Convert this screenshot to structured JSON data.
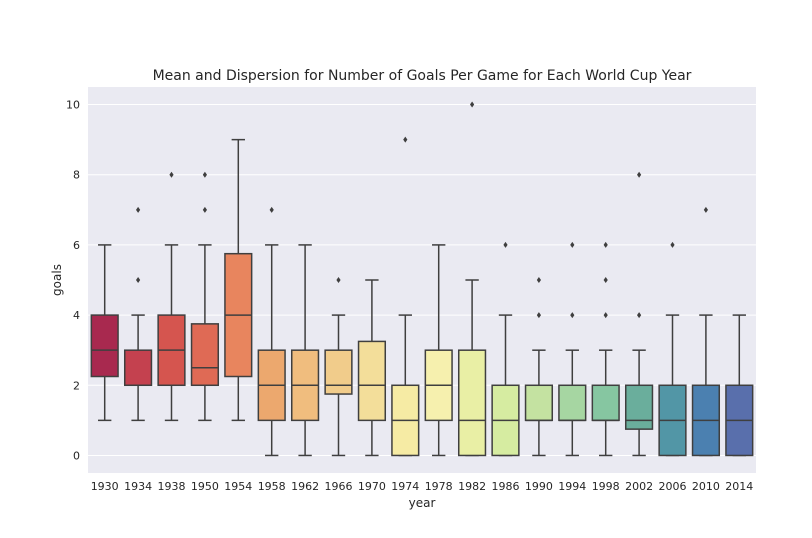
{
  "chart_data": {
    "type": "box",
    "title": "Mean and Dispersion for Number of Goals Per Game for Each World Cup Year",
    "xlabel": "year",
    "ylabel": "goals",
    "ylim": [
      -0.5,
      10.5
    ],
    "yticks": [
      0,
      2,
      4,
      6,
      8,
      10
    ],
    "grid": true,
    "categories": [
      "1930",
      "1934",
      "1938",
      "1950",
      "1954",
      "1958",
      "1962",
      "1966",
      "1970",
      "1974",
      "1978",
      "1982",
      "1986",
      "1990",
      "1994",
      "1998",
      "2002",
      "2006",
      "2010",
      "2014"
    ],
    "colors": [
      "#a8294f",
      "#c4414f",
      "#d5554f",
      "#df6a55",
      "#e8855e",
      "#eca86e",
      "#f0bd7e",
      "#f1cc8b",
      "#f3de9a",
      "#f6eba4",
      "#f6f0ae",
      "#e9efa5",
      "#d6eca1",
      "#c4e2a1",
      "#a6d6a2",
      "#86c6a1",
      "#6aae9c",
      "#5296a6",
      "#4b80b0",
      "#596fac"
    ],
    "boxes": [
      {
        "min": 1,
        "q1": 2.25,
        "median": 3,
        "q3": 4,
        "max": 6,
        "outliers": []
      },
      {
        "min": 1,
        "q1": 2,
        "median": 2,
        "q3": 3,
        "max": 4,
        "outliers": [
          5,
          7
        ]
      },
      {
        "min": 1,
        "q1": 2,
        "median": 3,
        "q3": 4,
        "max": 6,
        "outliers": [
          8
        ]
      },
      {
        "min": 1,
        "q1": 2,
        "median": 2.5,
        "q3": 3.75,
        "max": 6,
        "outliers": [
          7,
          8
        ]
      },
      {
        "min": 1,
        "q1": 2.25,
        "median": 4,
        "q3": 5.75,
        "max": 9,
        "outliers": []
      },
      {
        "min": 0,
        "q1": 1,
        "median": 2,
        "q3": 3,
        "max": 6,
        "outliers": [
          7
        ]
      },
      {
        "min": 0,
        "q1": 1,
        "median": 2,
        "q3": 3,
        "max": 6,
        "outliers": []
      },
      {
        "min": 0,
        "q1": 1.75,
        "median": 2,
        "q3": 3,
        "max": 4,
        "outliers": [
          5
        ]
      },
      {
        "min": 0,
        "q1": 1,
        "median": 2,
        "q3": 3.25,
        "max": 5,
        "outliers": []
      },
      {
        "min": 0,
        "q1": 0,
        "median": 1,
        "q3": 2,
        "max": 4,
        "outliers": [
          9
        ]
      },
      {
        "min": 0,
        "q1": 1,
        "median": 2,
        "q3": 3,
        "max": 6,
        "outliers": []
      },
      {
        "min": 0,
        "q1": 0,
        "median": 1,
        "q3": 3,
        "max": 5,
        "outliers": [
          10
        ]
      },
      {
        "min": 0,
        "q1": 0,
        "median": 1,
        "q3": 2,
        "max": 4,
        "outliers": [
          6
        ]
      },
      {
        "min": 0,
        "q1": 1,
        "median": 1,
        "q3": 2,
        "max": 3,
        "outliers": [
          4,
          5
        ]
      },
      {
        "min": 0,
        "q1": 1,
        "median": 1,
        "q3": 2,
        "max": 3,
        "outliers": [
          4,
          6
        ]
      },
      {
        "min": 0,
        "q1": 1,
        "median": 1,
        "q3": 2,
        "max": 3,
        "outliers": [
          4,
          5,
          6
        ]
      },
      {
        "min": 0,
        "q1": 0.75,
        "median": 1,
        "q3": 2,
        "max": 3,
        "outliers": [
          4,
          8
        ]
      },
      {
        "min": 0,
        "q1": 0,
        "median": 1,
        "q3": 2,
        "max": 4,
        "outliers": [
          6
        ]
      },
      {
        "min": 0,
        "q1": 0,
        "median": 1,
        "q3": 2,
        "max": 4,
        "outliers": [
          7
        ]
      },
      {
        "min": 0,
        "q1": 0,
        "median": 1,
        "q3": 2,
        "max": 4,
        "outliers": []
      }
    ]
  }
}
